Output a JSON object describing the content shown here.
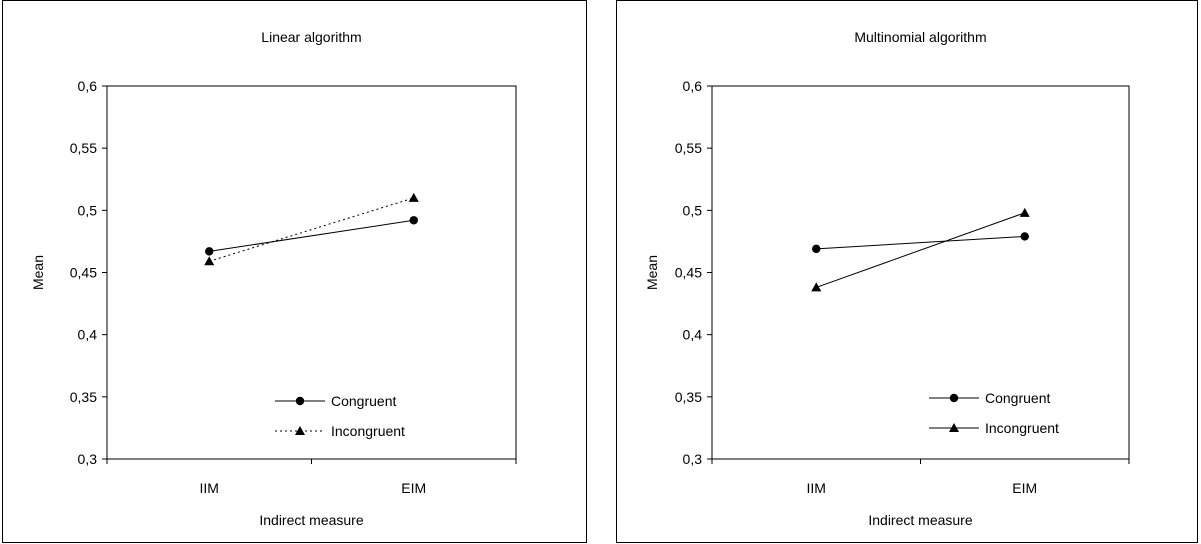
{
  "chart_data": [
    {
      "type": "line",
      "title": "Linear algorithm",
      "xlabel": "Indirect measure",
      "ylabel": "Mean",
      "categories": [
        "IIM",
        "EIM"
      ],
      "ylim": [
        0.3,
        0.6
      ],
      "yticks": [
        "0,3",
        "0,35",
        "0,4",
        "0,45",
        "0,5",
        "0,55",
        "0,6"
      ],
      "legend_position": "bottom-right",
      "series": [
        {
          "name": "Congruent",
          "values": [
            0.467,
            0.492
          ],
          "marker": "circle",
          "dash": "solid"
        },
        {
          "name": "Incongruent",
          "values": [
            0.459,
            0.51
          ],
          "marker": "triangle",
          "dash": "dotted"
        }
      ]
    },
    {
      "type": "line",
      "title": "Multinomial algorithm",
      "xlabel": "Indirect measure",
      "ylabel": "Mean",
      "categories": [
        "IIM",
        "EIM"
      ],
      "ylim": [
        0.3,
        0.6
      ],
      "yticks": [
        "0,3",
        "0,35",
        "0,4",
        "0,45",
        "0,5",
        "0,55",
        "0,6"
      ],
      "legend_position": "bottom-right",
      "series": [
        {
          "name": "Congruent",
          "values": [
            0.469,
            0.479
          ],
          "marker": "circle",
          "dash": "solid"
        },
        {
          "name": "Incongruent",
          "values": [
            0.438,
            0.498
          ],
          "marker": "triangle",
          "dash": "solid"
        }
      ]
    }
  ]
}
